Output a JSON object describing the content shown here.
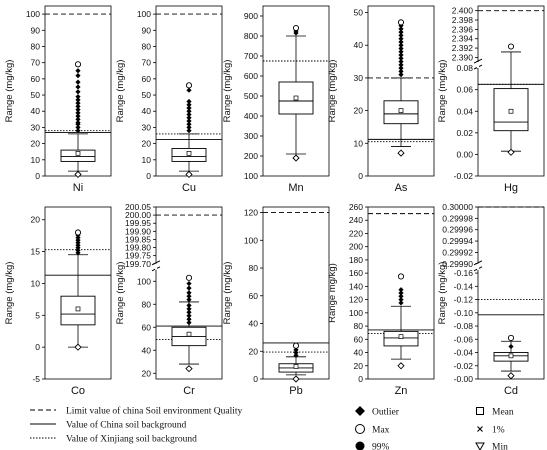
{
  "figure": {
    "legend": {
      "lines": [
        {
          "style": "dashed",
          "label": "Limit value of china Soil environment Quality"
        },
        {
          "style": "solid",
          "label": "Value of China soil background"
        },
        {
          "style": "dotted",
          "label": "Value of Xinjiang soil background"
        }
      ],
      "symbols": [
        {
          "symbol": "filled-diamond",
          "label": "Outlier"
        },
        {
          "symbol": "open-circle",
          "label": "Max"
        },
        {
          "symbol": "filled-circle",
          "label": "99%"
        },
        {
          "symbol": "open-square",
          "label": "Mean"
        },
        {
          "symbol": "cross",
          "label": "1%"
        },
        {
          "symbol": "open-triangle-down",
          "label": "Min"
        }
      ]
    }
  },
  "chart_data": [
    {
      "type": "box",
      "element": "Ni",
      "ylabel": "Range (mg/kg)",
      "ylim": [
        0,
        105
      ],
      "yticks": [
        "0",
        "10",
        "20",
        "30",
        "40",
        "50",
        "60",
        "70",
        "80",
        "90",
        "100"
      ],
      "box": {
        "q1": 9,
        "median": 12,
        "q3": 16,
        "whisker_low": 3,
        "whisker_high": 26,
        "mean": 14,
        "min": 1,
        "max": 69
      },
      "outliers": [
        28,
        30,
        32,
        33,
        35,
        37,
        39,
        41,
        43,
        45,
        47,
        49,
        52,
        55,
        58,
        62,
        65
      ],
      "reference": {
        "limit": 100,
        "china_background": 26.9,
        "xinjiang_background": 28
      }
    },
    {
      "type": "box",
      "element": "Cu",
      "ylabel": "Range (mg/kg)",
      "ylim": [
        0,
        105
      ],
      "yticks": [
        "0",
        "10",
        "20",
        "30",
        "40",
        "50",
        "60",
        "70",
        "80",
        "90",
        "100"
      ],
      "box": {
        "q1": 9,
        "median": 12,
        "q3": 17,
        "whisker_low": 3,
        "whisker_high": 26,
        "mean": 14,
        "min": 1,
        "max": 56
      },
      "outliers": [
        28,
        30,
        32,
        34,
        36,
        38,
        40,
        42,
        44,
        46,
        53
      ],
      "reference": {
        "limit": 100,
        "china_background": 22.6,
        "xinjiang_background": 26
      }
    },
    {
      "type": "box",
      "element": "Mn",
      "ylabel": "Range (mg/kg)",
      "ylim": [
        100,
        950
      ],
      "yticks": [
        "100",
        "200",
        "300",
        "400",
        "500",
        "600",
        "700",
        "800",
        "900"
      ],
      "box": {
        "q1": 410,
        "median": 475,
        "q3": 570,
        "whisker_low": 210,
        "whisker_high": 800,
        "mean": 490,
        "min": 190,
        "max": 840
      },
      "outliers": [
        815,
        825
      ],
      "reference": {
        "xinjiang_background": 675
      }
    },
    {
      "type": "box",
      "element": "As",
      "ylabel": "Range (mg/kg)",
      "ylim": [
        0,
        52
      ],
      "yticks": [
        "0",
        "10",
        "20",
        "30",
        "40",
        "50"
      ],
      "box": {
        "q1": 16,
        "median": 19,
        "q3": 23,
        "whisker_low": 9,
        "whisker_high": 30,
        "mean": 20,
        "min": 7,
        "max": 47
      },
      "outliers": [
        31,
        32,
        33,
        34,
        35,
        36,
        37,
        38,
        39,
        40,
        41,
        42,
        43,
        44,
        45,
        46
      ],
      "reference": {
        "limit": 30,
        "china_background": 11.2,
        "xinjiang_background": 10.5
      }
    },
    {
      "type": "box",
      "element": "Hg",
      "ylabel": "Range (mg/kg)",
      "broken_axis": true,
      "lower_ylim": [
        -0.02,
        0.08
      ],
      "upper_ylim": [
        2.389,
        2.401
      ],
      "yticks_lower": [
        "-0.02",
        "0.00",
        "0.02",
        "0.04",
        "0.06",
        "0.08"
      ],
      "yticks_upper": [
        "2.390",
        "2.392",
        "2.394",
        "2.396",
        "2.398",
        "2.400"
      ],
      "box": {
        "q1": 0.022,
        "median": 0.03,
        "q3": 0.061,
        "whisker_low": 0.003,
        "whisker_high": 0.095,
        "mean": 0.04,
        "min": 0.002,
        "max": 0.1
      },
      "outliers": [],
      "reference": {
        "limit": 2.4,
        "china_background": 0.065,
        "xinjiang_background": 0.065
      }
    },
    {
      "type": "box",
      "element": "Co",
      "ylabel": "Range (mg/kg)",
      "ylim": [
        -5,
        22
      ],
      "yticks": [
        "-5",
        "0",
        "5",
        "10",
        "15",
        "20"
      ],
      "box": {
        "q1": 3.5,
        "median": 5.2,
        "q3": 8,
        "whisker_low": 0,
        "whisker_high": 14.5,
        "mean": 6,
        "min": 0,
        "max": 18
      },
      "outliers": [
        14.8,
        15.2,
        15.6,
        16,
        16.4,
        16.8,
        17.2,
        17.6
      ],
      "reference": {
        "china_background": 11.3,
        "xinjiang_background": 15.3
      }
    },
    {
      "type": "box",
      "element": "Cr",
      "ylabel": "Range (mg/kg)",
      "broken_axis": true,
      "lower_ylim": [
        15,
        110
      ],
      "upper_ylim": [
        199.7,
        200.05
      ],
      "yticks_lower": [
        "20",
        "40",
        "60",
        "80",
        "100"
      ],
      "yticks_upper": [
        "199.70",
        "199.75",
        "199.80",
        "199.85",
        "199.90",
        "199.95",
        "200.00",
        "200.05"
      ],
      "box": {
        "q1": 44,
        "median": 52,
        "q3": 60,
        "whisker_low": 28,
        "whisker_high": 82,
        "mean": 54,
        "min": 24,
        "max": 103
      },
      "outliers": [
        64,
        67,
        70,
        73,
        76,
        79,
        84,
        87,
        90,
        94,
        98
      ],
      "reference": {
        "limit": 200,
        "china_background": 61,
        "xinjiang_background": 49.3
      }
    },
    {
      "type": "box",
      "element": "Pb",
      "ylabel": "Range (mg/kg)",
      "ylim": [
        0,
        124
      ],
      "yticks": [
        "0",
        "20",
        "40",
        "60",
        "80",
        "100",
        "120"
      ],
      "box": {
        "q1": 5,
        "median": 8,
        "q3": 11,
        "whisker_low": 3,
        "whisker_high": 16,
        "mean": 9,
        "min": 0,
        "max": 24
      },
      "outliers": [
        17,
        19,
        21
      ],
      "reference": {
        "limit": 120,
        "china_background": 26,
        "xinjiang_background": 19.4
      }
    },
    {
      "type": "box",
      "element": "Zn",
      "ylabel": "Range mg/kg)",
      "ylim": [
        0,
        260
      ],
      "yticks": [
        "0",
        "20",
        "40",
        "60",
        "80",
        "100",
        "120",
        "140",
        "160",
        "180",
        "200",
        "220",
        "240",
        "260"
      ],
      "box": {
        "q1": 50,
        "median": 62,
        "q3": 72,
        "whisker_low": 30,
        "whisker_high": 110,
        "mean": 64,
        "min": 20,
        "max": 155
      },
      "outliers": [
        115,
        120,
        125,
        130,
        135
      ],
      "reference": {
        "limit": 250,
        "china_background": 74.2,
        "xinjiang_background": 68.8
      }
    },
    {
      "type": "box",
      "element": "Cd",
      "ylabel": "Range (mg/kg)",
      "broken_axis": true,
      "lower_ylim": [
        0.0,
        0.165
      ],
      "upper_ylim": [
        0.2999,
        0.3
      ],
      "yticks_lower": [
        "-0.00",
        "-0.02",
        "-0.04",
        "-0.06",
        "-0.08",
        "-0.10",
        "-0.12",
        "-0.14",
        "-0.16"
      ],
      "yticks_upper": [
        "0.29990",
        "0.29992",
        "0.29994",
        "0.29996",
        "0.29998",
        "0.30000"
      ],
      "box": {
        "q1": 0.027,
        "median": 0.035,
        "q3": 0.04,
        "whisker_low": 0.012,
        "whisker_high": 0.057,
        "mean": 0.035,
        "min": 0.005,
        "max": 0.062
      },
      "outliers": [
        0.049
      ],
      "reference": {
        "limit": 0.3,
        "china_background": 0.097,
        "xinjiang_background": 0.12
      }
    }
  ]
}
